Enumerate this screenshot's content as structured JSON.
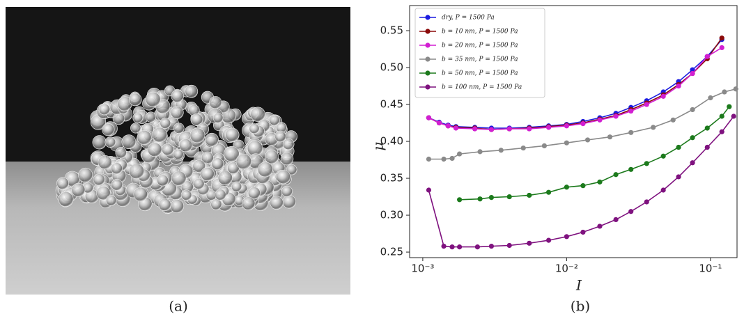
{
  "caption_a": "(a)",
  "chart_data": {
    "type": "line",
    "caption": "(b)",
    "xlabel": "I",
    "ylabel": "μ",
    "xscale": "log",
    "legend": "upper left",
    "xlim": [
      0.00081,
      0.153
    ],
    "ylim": [
      0.2425,
      0.584
    ],
    "xticks": [
      {
        "value": 0.001,
        "label": "10⁻³"
      },
      {
        "value": 0.01,
        "label": "10⁻²"
      },
      {
        "value": 0.1,
        "label": "10⁻¹"
      }
    ],
    "yticks": [
      {
        "value": 0.25,
        "label": "0.25"
      },
      {
        "value": 0.3,
        "label": "0.30"
      },
      0.35,
      {
        "value": 0.4,
        "label": "0.40"
      },
      0.45,
      {
        "value": 0.5,
        "label": "0.50"
      },
      0.55
    ],
    "series": [
      {
        "name": "dry,  P = 1500 Pa",
        "color": "#1c1ce0",
        "x": [
          0.0011,
          0.0013,
          0.0015,
          0.0017,
          0.0023,
          0.003,
          0.004,
          0.0055,
          0.0075,
          0.01,
          0.013,
          0.017,
          0.022,
          0.028,
          0.036,
          0.047,
          0.06,
          0.075,
          0.095,
          0.12
        ],
        "values": [
          0.432,
          0.426,
          0.422,
          0.42,
          0.419,
          0.418,
          0.418,
          0.419,
          0.421,
          0.423,
          0.427,
          0.432,
          0.438,
          0.446,
          0.455,
          0.467,
          0.481,
          0.497,
          0.515,
          0.538
        ]
      },
      {
        "name": "b = 10 nm,  P = 1500 Pa",
        "color": "#8b0a0a",
        "x": [
          0.0011,
          0.0013,
          0.0015,
          0.0017,
          0.0023,
          0.003,
          0.004,
          0.0055,
          0.0075,
          0.01,
          0.013,
          0.017,
          0.022,
          0.028,
          0.036,
          0.047,
          0.06,
          0.075,
          0.095,
          0.12
        ],
        "values": [
          0.432,
          0.425,
          0.421,
          0.419,
          0.418,
          0.416,
          0.417,
          0.418,
          0.42,
          0.422,
          0.425,
          0.43,
          0.435,
          0.443,
          0.452,
          0.463,
          0.477,
          0.492,
          0.512,
          0.54
        ]
      },
      {
        "name": "b = 20 nm,  P = 1500 Pa",
        "color": "#d21fd2",
        "x": [
          0.0011,
          0.0013,
          0.0015,
          0.0017,
          0.0023,
          0.003,
          0.004,
          0.0055,
          0.0075,
          0.01,
          0.013,
          0.017,
          0.022,
          0.028,
          0.036,
          0.047,
          0.06,
          0.075,
          0.095,
          0.12
        ],
        "values": [
          0.432,
          0.425,
          0.421,
          0.418,
          0.417,
          0.416,
          0.417,
          0.417,
          0.419,
          0.421,
          0.424,
          0.429,
          0.434,
          0.441,
          0.45,
          0.461,
          0.475,
          0.492,
          0.515,
          0.527
        ]
      },
      {
        "name": "b = 35 nm,  P = 1500 Pa",
        "color": "#8a8a8a",
        "x": [
          0.0011,
          0.0014,
          0.0016,
          0.0018,
          0.0025,
          0.0035,
          0.005,
          0.007,
          0.01,
          0.014,
          0.02,
          0.028,
          0.04,
          0.055,
          0.075,
          0.1,
          0.125,
          0.15
        ],
        "values": [
          0.376,
          0.376,
          0.377,
          0.383,
          0.386,
          0.388,
          0.391,
          0.394,
          0.398,
          0.402,
          0.406,
          0.412,
          0.419,
          0.429,
          0.443,
          0.459,
          0.467,
          0.471
        ]
      },
      {
        "name": "b = 50 nm,  P = 1500 Pa",
        "color": "#1c7a1c",
        "x": [
          0.0018,
          0.0025,
          0.003,
          0.004,
          0.0055,
          0.0075,
          0.01,
          0.013,
          0.017,
          0.022,
          0.028,
          0.036,
          0.047,
          0.06,
          0.075,
          0.095,
          0.12,
          0.135
        ],
        "values": [
          0.321,
          0.322,
          0.324,
          0.325,
          0.327,
          0.331,
          0.338,
          0.34,
          0.345,
          0.355,
          0.362,
          0.37,
          0.38,
          0.392,
          0.405,
          0.418,
          0.434,
          0.447
        ]
      },
      {
        "name": "b = 100 nm,  P = 1500 Pa",
        "color": "#7f127f",
        "x": [
          0.0011,
          0.0014,
          0.0016,
          0.0018,
          0.0024,
          0.003,
          0.004,
          0.0055,
          0.0075,
          0.01,
          0.013,
          0.017,
          0.022,
          0.028,
          0.036,
          0.047,
          0.06,
          0.075,
          0.095,
          0.12,
          0.145
        ],
        "values": [
          0.334,
          0.258,
          0.257,
          0.257,
          0.257,
          0.258,
          0.259,
          0.262,
          0.266,
          0.271,
          0.277,
          0.285,
          0.294,
          0.305,
          0.318,
          0.334,
          0.352,
          0.371,
          0.392,
          0.413,
          0.434
        ]
      }
    ]
  }
}
